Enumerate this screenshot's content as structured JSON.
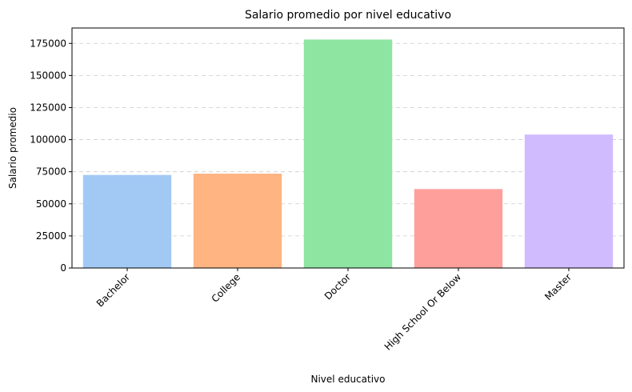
{
  "chart_data": {
    "type": "bar",
    "title": "Salario promedio por nivel educativo",
    "xlabel": "Nivel educativo",
    "ylabel": "Salario promedio",
    "categories": [
      "Bachelor",
      "College",
      "Doctor",
      "High School Or Below",
      "Master"
    ],
    "values": [
      72500,
      73500,
      178000,
      61500,
      104000
    ],
    "colors": [
      "#a1c9f4",
      "#ffb482",
      "#8de5a1",
      "#ff9f9b",
      "#d0bbff"
    ],
    "ylim": [
      0,
      187000
    ],
    "yticks": [
      0,
      25000,
      50000,
      75000,
      100000,
      125000,
      150000,
      175000
    ],
    "grid": "y-dashed",
    "legend": "none"
  }
}
